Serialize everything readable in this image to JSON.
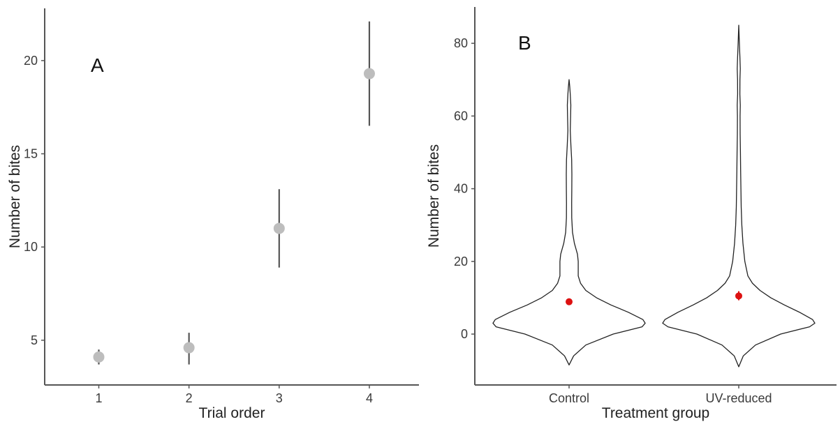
{
  "chart_data": [
    {
      "type": "scatter",
      "panel_label": "A",
      "xlabel": "Trial order",
      "ylabel": "Number of bites",
      "x": [
        1,
        2,
        3,
        4
      ],
      "x_tick_labels": [
        "1",
        "2",
        "3",
        "4"
      ],
      "y_tick_labels": [
        "5",
        "10",
        "15",
        "20"
      ],
      "y_ticks": [
        5,
        10,
        15,
        20
      ],
      "xlim": [
        0.4,
        4.55
      ],
      "ylim": [
        2.6,
        22.8
      ],
      "series": [
        {
          "y": [
            4.1,
            4.6,
            11.0,
            19.3
          ],
          "y_low": [
            3.7,
            3.7,
            8.9,
            16.5
          ],
          "y_high": [
            4.5,
            5.4,
            13.1,
            22.1
          ],
          "color": "#bdbdbd"
        }
      ],
      "errorbar_color": "#555555",
      "grid": false
    },
    {
      "type": "violin",
      "panel_label": "B",
      "xlabel": "Treatment group",
      "ylabel": "Number of bites",
      "categories": [
        "Control",
        "UV-reduced"
      ],
      "y_tick_labels": [
        "0",
        "20",
        "40",
        "60",
        "80"
      ],
      "y_ticks": [
        0,
        20,
        40,
        60,
        80
      ],
      "ylim": [
        -14,
        90
      ],
      "violins": [
        {
          "category": "Control",
          "range": [
            -8.5,
            70
          ],
          "mean": 8.9,
          "mean_low": 8.1,
          "mean_high": 9.8,
          "density_profile": [
            [
              -8.5,
              0.0
            ],
            [
              -6,
              0.06
            ],
            [
              -3,
              0.22
            ],
            [
              0,
              0.58
            ],
            [
              2,
              0.96
            ],
            [
              3,
              1.0
            ],
            [
              4,
              0.97
            ],
            [
              6,
              0.78
            ],
            [
              8,
              0.55
            ],
            [
              10,
              0.36
            ],
            [
              12,
              0.22
            ],
            [
              14,
              0.15
            ],
            [
              16,
              0.12
            ],
            [
              18,
              0.12
            ],
            [
              20,
              0.12
            ],
            [
              22,
              0.11
            ],
            [
              25,
              0.07
            ],
            [
              28,
              0.045
            ],
            [
              32,
              0.035
            ],
            [
              36,
              0.034
            ],
            [
              40,
              0.036
            ],
            [
              44,
              0.037
            ],
            [
              48,
              0.034
            ],
            [
              52,
              0.024
            ],
            [
              56,
              0.016
            ],
            [
              60,
              0.02
            ],
            [
              63,
              0.023
            ],
            [
              66,
              0.016
            ],
            [
              68,
              0.009
            ],
            [
              70,
              0.0
            ]
          ]
        },
        {
          "category": "UV-reduced",
          "range": [
            -9,
            85
          ],
          "mean": 10.5,
          "mean_low": 9.3,
          "mean_high": 11.8,
          "density_profile": [
            [
              -9,
              0.0
            ],
            [
              -6,
              0.06
            ],
            [
              -3,
              0.22
            ],
            [
              0,
              0.55
            ],
            [
              2,
              0.93
            ],
            [
              3,
              1.0
            ],
            [
              4,
              0.97
            ],
            [
              6,
              0.8
            ],
            [
              8,
              0.6
            ],
            [
              10,
              0.42
            ],
            [
              12,
              0.28
            ],
            [
              14,
              0.18
            ],
            [
              16,
              0.12
            ],
            [
              20,
              0.08
            ],
            [
              25,
              0.055
            ],
            [
              30,
              0.04
            ],
            [
              35,
              0.032
            ],
            [
              40,
              0.028
            ],
            [
              45,
              0.025
            ],
            [
              50,
              0.022
            ],
            [
              55,
              0.018
            ],
            [
              60,
              0.017
            ],
            [
              63,
              0.02
            ],
            [
              66,
              0.015
            ],
            [
              70,
              0.016
            ],
            [
              73,
              0.02
            ],
            [
              76,
              0.016
            ],
            [
              80,
              0.008
            ],
            [
              85,
              0.0
            ]
          ]
        }
      ],
      "mean_color": "#dd1111",
      "outline_color": "#222222",
      "grid": false
    }
  ]
}
